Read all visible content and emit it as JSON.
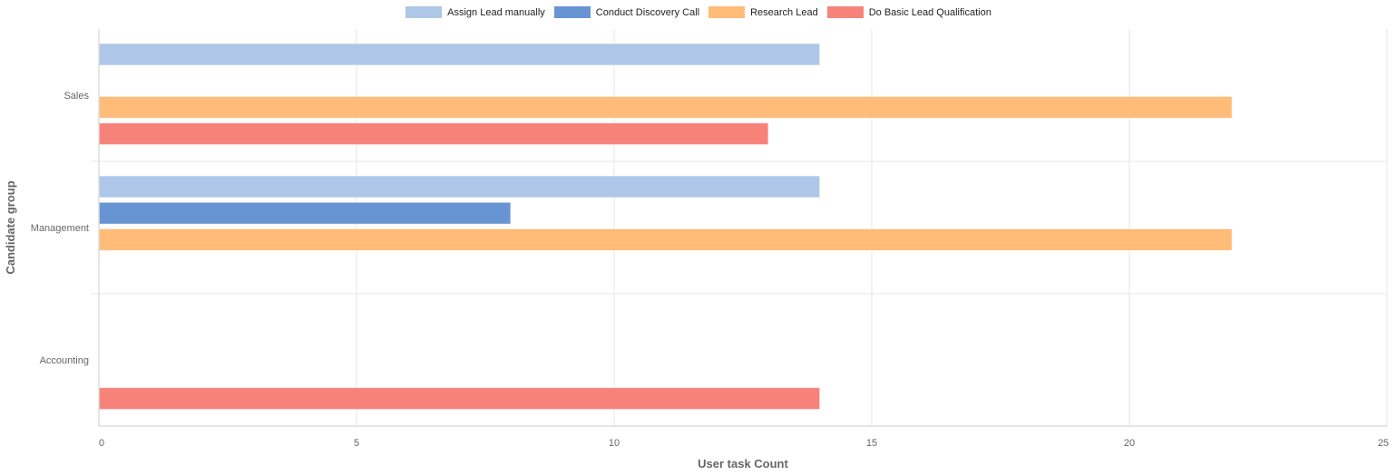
{
  "chart_data": {
    "type": "bar",
    "orientation": "horizontal",
    "categories": [
      "Sales",
      "Management",
      "Accounting"
    ],
    "series": [
      {
        "name": "Assign Lead manually",
        "color": "#aec7e8",
        "values": [
          14,
          14,
          0
        ]
      },
      {
        "name": "Conduct Discovery Call",
        "color": "#6894d4",
        "values": [
          0,
          8,
          0
        ]
      },
      {
        "name": "Research Lead",
        "color": "#ffbb78",
        "values": [
          22,
          22,
          0
        ]
      },
      {
        "name": "Do Basic Lead Qualification",
        "color": "#f7827a",
        "values": [
          13,
          0,
          14
        ]
      }
    ],
    "xlabel": "User task Count",
    "ylabel": "Candidate group",
    "xlim": [
      0,
      25
    ],
    "xticks": [
      0,
      5,
      10,
      15,
      20,
      25
    ],
    "grid": true,
    "legend_position": "top-center"
  }
}
